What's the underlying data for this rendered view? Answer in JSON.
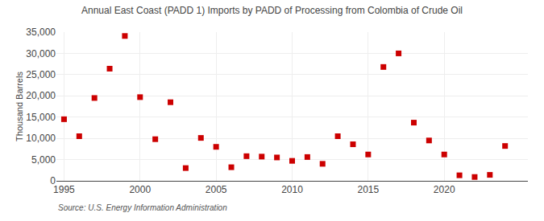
{
  "chart_data": {
    "type": "scatter",
    "title": "Annual East Coast (PADD 1) Imports by PADD of Processing from Colombia of Crude Oil",
    "ylabel": "Thousand Barrels",
    "annotations": [
      "Source: U.S. Energy Information Administration"
    ],
    "x": [
      1995,
      1996,
      1997,
      1998,
      1999,
      2000,
      2001,
      2002,
      2003,
      2004,
      2005,
      2006,
      2007,
      2008,
      2009,
      2010,
      2011,
      2012,
      2013,
      2014,
      2015,
      2016,
      2017,
      2018,
      2019,
      2020,
      2021,
      2022,
      2023,
      2024
    ],
    "values": [
      14500,
      10500,
      19500,
      26400,
      34100,
      19700,
      9800,
      18500,
      3000,
      10100,
      8000,
      3200,
      5800,
      5700,
      5500,
      4700,
      5600,
      4000,
      10500,
      8600,
      6200,
      26800,
      30000,
      13700,
      9500,
      6200,
      1300,
      900,
      1400,
      8200
    ],
    "color": "#cc0000",
    "marker": "square",
    "xlim": [
      1994.5,
      2025.5
    ],
    "xticks": [
      1995,
      2000,
      2005,
      2010,
      2015,
      2020
    ],
    "ylim": [
      0,
      35000
    ],
    "yticks": [
      0,
      {
        "value": 5000,
        "label": "5,000"
      },
      {
        "value": 10000,
        "label": "10,000"
      },
      {
        "value": 15000,
        "label": "15,000"
      },
      {
        "value": 20000,
        "label": "20,000"
      },
      {
        "value": 25000,
        "label": "25,000"
      },
      {
        "value": 30000,
        "label": "30,000"
      },
      {
        "value": 35000,
        "label": "35,000"
      }
    ],
    "grid": true
  }
}
